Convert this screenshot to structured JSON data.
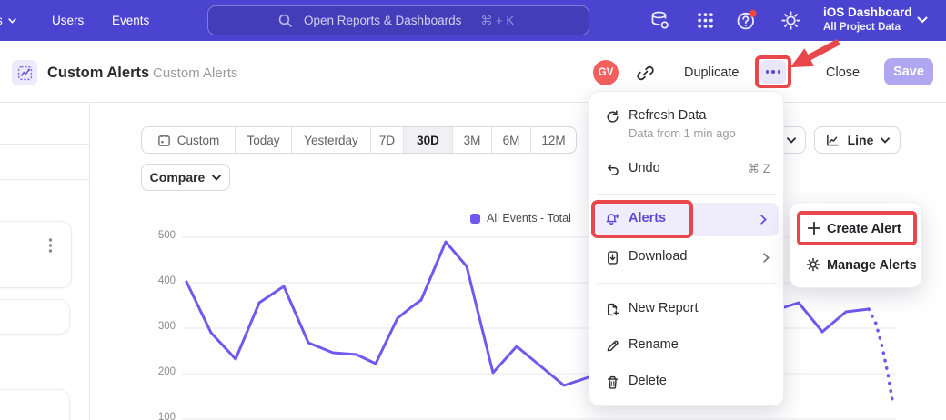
{
  "colors": {
    "topnav_bg": "#4b44d0",
    "accent_purple": "#5b4bd8",
    "chart_line": "#7158ee",
    "annotation_red": "#e8484b",
    "avatar_bg": "#f2605e",
    "save_button_bg": "#b1a7f1",
    "menu_highlight_bg": "#efedfc"
  },
  "topnav": {
    "overflow_item_label": "s",
    "items": [
      {
        "label": "Users"
      },
      {
        "label": "Events"
      }
    ],
    "search": {
      "placeholder": "Open Reports & Dashboards",
      "shortcut": "⌘ + K"
    },
    "icon_names": [
      "data-management-icon",
      "apps-grid-icon",
      "help-icon",
      "settings-icon"
    ],
    "project": {
      "name": "iOS Dashboard",
      "scope": "All Project Data"
    }
  },
  "header": {
    "title": "Custom Alerts",
    "breadcrumb": "Custom Alerts",
    "avatar_initials": "GV",
    "duplicate_label": "Duplicate",
    "close_label": "Close",
    "save_label": "Save"
  },
  "controls": {
    "date_ranges": [
      {
        "label": "Custom",
        "has_calendar_icon": true,
        "active": false
      },
      {
        "label": "Today",
        "active": false
      },
      {
        "label": "Yesterday",
        "active": false
      },
      {
        "label": "7D",
        "active": false
      },
      {
        "label": "30D",
        "active": true
      },
      {
        "label": "3M",
        "active": false
      },
      {
        "label": "6M",
        "active": false
      },
      {
        "label": "12M",
        "active": false
      }
    ],
    "compare_label": "Compare",
    "chart_type_label": "Line"
  },
  "menu": {
    "items": [
      {
        "label": "Refresh Data",
        "sublabel": "Data from 1 min ago",
        "icon": "refresh-icon"
      },
      {
        "label": "Undo",
        "shortcut": "⌘ Z",
        "icon": "undo-icon"
      },
      {
        "label": "Alerts",
        "icon": "alert-bell-icon",
        "has_submenu": true,
        "highlighted": true,
        "annotated": true
      },
      {
        "label": "Download",
        "icon": "download-icon",
        "has_submenu": true
      },
      {
        "label": "New Report",
        "icon": "new-report-icon"
      },
      {
        "label": "Rename",
        "icon": "rename-icon"
      },
      {
        "label": "Delete",
        "icon": "delete-icon"
      }
    ]
  },
  "submenu": {
    "items": [
      {
        "label": "Create Alert",
        "icon": "plus-icon",
        "annotated": true
      },
      {
        "label": "Manage Alerts",
        "icon": "gear-icon"
      }
    ]
  },
  "left_panel": {
    "kebab_icon": "kebab-menu-icon",
    "card_count": 3
  },
  "chart_data": {
    "type": "line",
    "title": "",
    "legend": [
      {
        "label": "All Events - Total",
        "color": "#7158ee"
      }
    ],
    "legend_position": "top-right",
    "grid": true,
    "y_ticks": [
      500,
      400,
      300,
      200,
      100
    ],
    "ylim": [
      100,
      520
    ],
    "x_note": "30-day daily series; x stored as pixel offset, y as metric value",
    "series": [
      {
        "name": "All Events - Total",
        "points_solid": [
          [
            205,
            402
          ],
          [
            232,
            290
          ],
          [
            259,
            232
          ],
          [
            285,
            356
          ],
          [
            312,
            392
          ],
          [
            339,
            268
          ],
          [
            366,
            246
          ],
          [
            392,
            242
          ],
          [
            413,
            222
          ],
          [
            437,
            322
          ],
          [
            452,
            346
          ],
          [
            463,
            362
          ],
          [
            490,
            490
          ],
          [
            513,
            436
          ],
          [
            542,
            202
          ],
          [
            568,
            260
          ],
          [
            620,
            174
          ],
          [
            647,
            192
          ],
          [
            674,
            214
          ],
          [
            700,
            252
          ],
          [
            726,
            228
          ],
          [
            752,
            284
          ],
          [
            778,
            262
          ],
          [
            804,
            310
          ],
          [
            830,
            328
          ],
          [
            856,
            342
          ],
          [
            878,
            356
          ],
          [
            904,
            292
          ],
          [
            930,
            336
          ],
          [
            955,
            342
          ]
        ],
        "points_dotted_projection": [
          [
            955,
            342
          ],
          [
            963,
            310
          ],
          [
            970,
            258
          ],
          [
            976,
            200
          ],
          [
            982,
            130
          ]
        ]
      }
    ]
  }
}
